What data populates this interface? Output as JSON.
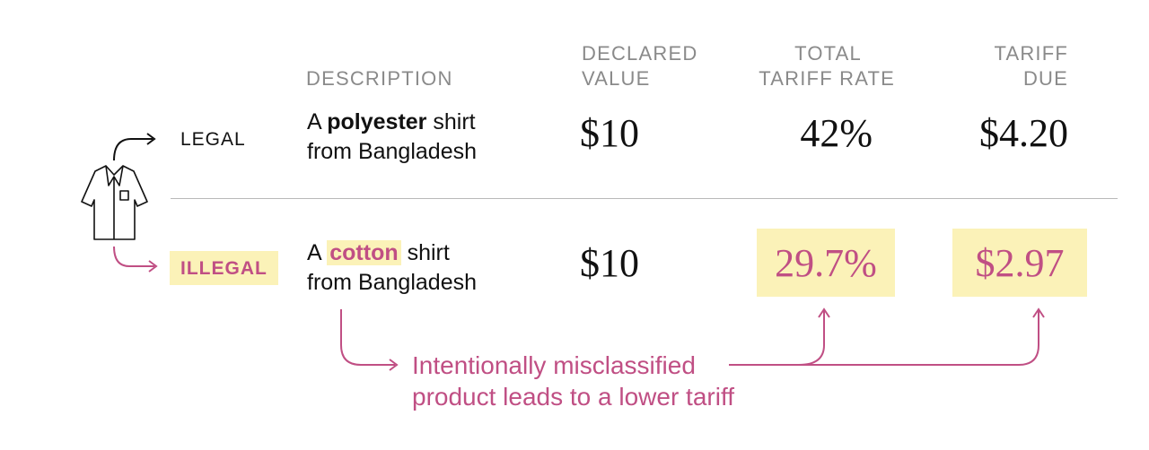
{
  "headers": {
    "description": "DESCRIPTION",
    "declared_value": [
      "DECLARED",
      "VALUE"
    ],
    "total_tariff_rate": [
      "TOTAL",
      "TARIFF RATE"
    ],
    "tariff_due": [
      "TARIFF",
      "DUE"
    ]
  },
  "rows": [
    {
      "label": "LEGAL",
      "desc_pre": "A ",
      "desc_material": "polyester",
      "desc_post": " shirt",
      "desc_line2": "from Bangladesh",
      "declared_value": "$10",
      "tariff_rate": "42%",
      "tariff_due": "$4.20"
    },
    {
      "label": "ILLEGAL",
      "desc_pre": "A ",
      "desc_material": "cotton",
      "desc_post": " shirt",
      "desc_line2": "from Bangladesh",
      "declared_value": "$10",
      "tariff_rate": "29.7%",
      "tariff_due": "$2.97"
    }
  ],
  "annotation": [
    "Intentionally misclassified",
    "product leads to a lower tariff"
  ],
  "icons": {
    "product": "shirt-icon"
  },
  "colors": {
    "accent": "#c04f84",
    "highlight": "#fbf2b8",
    "text": "#111111",
    "header": "#8a8a8a"
  }
}
